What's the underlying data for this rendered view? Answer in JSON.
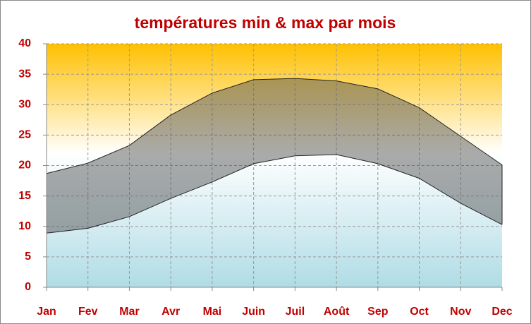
{
  "chart_data": {
    "type": "range-area",
    "title": "températures min & max par mois",
    "categories": [
      "Jan",
      "Fev",
      "Mar",
      "Avr",
      "Mai",
      "Juin",
      "Juil",
      "Août",
      "Sep",
      "Oct",
      "Nov",
      "Dec"
    ],
    "series": [
      {
        "color": "#555555",
        "values": [
          18.7,
          20.4,
          23.3,
          28.3,
          31.9,
          34.1,
          34.3,
          33.9,
          32.6,
          29.5,
          24.8,
          20.1
        ]
      },
      {
        "color": "#555555",
        "values": [
          8.9,
          9.7,
          11.6,
          14.6,
          17.3,
          20.3,
          21.6,
          21.8,
          20.3,
          17.9,
          13.8,
          10.3
        ]
      }
    ],
    "ylim": [
      0,
      40
    ],
    "yticks": [
      0,
      5,
      10,
      15,
      20,
      25,
      30,
      35,
      40
    ],
    "grid": true
  }
}
